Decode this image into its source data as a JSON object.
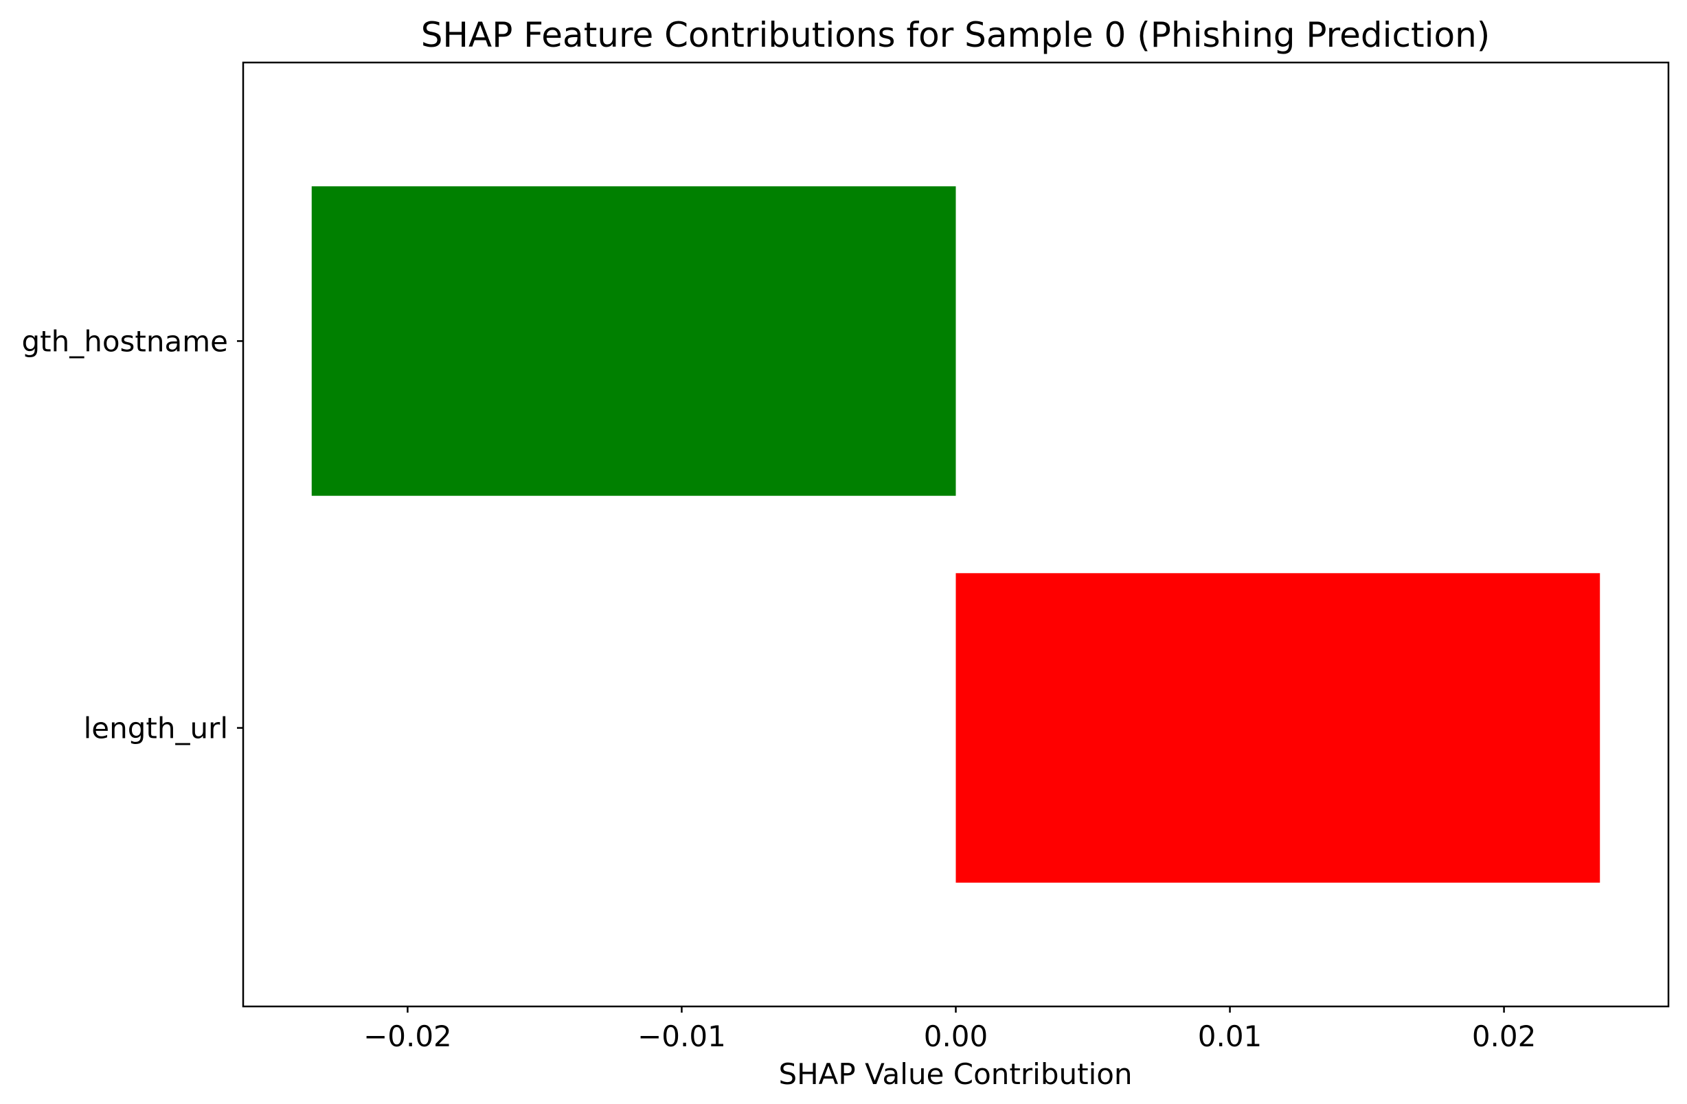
{
  "chart_data": {
    "type": "bar",
    "orientation": "horizontal",
    "title": "SHAP Feature Contributions for Sample 0 (Phishing Prediction)",
    "xlabel": "SHAP Value Contribution",
    "ylabel": "",
    "xlim": [
      -0.026,
      0.026
    ],
    "xticks": [
      {
        "value": -0.02,
        "label": "−0.02"
      },
      {
        "value": -0.01,
        "label": "−0.01"
      },
      {
        "value": 0.0,
        "label": "0.00"
      },
      {
        "value": 0.01,
        "label": "0.01"
      },
      {
        "value": 0.02,
        "label": "0.02"
      }
    ],
    "categories": [
      "gth_hostname",
      "length_url"
    ],
    "values": [
      -0.0235,
      0.0235
    ],
    "bar_colors": [
      "#008000",
      "#ff0000"
    ],
    "grid": false,
    "legend": "none"
  }
}
